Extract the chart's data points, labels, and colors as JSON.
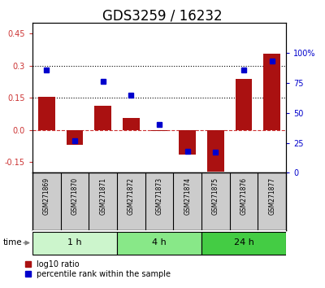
{
  "title": "GDS3259 / 16232",
  "samples": [
    "GSM271869",
    "GSM271870",
    "GSM271871",
    "GSM271872",
    "GSM271873",
    "GSM271874",
    "GSM271875",
    "GSM271876",
    "GSM271877"
  ],
  "log10_ratio": [
    0.155,
    -0.07,
    0.115,
    0.055,
    -0.005,
    -0.115,
    -0.195,
    0.24,
    0.355
  ],
  "percentile_rank": [
    86,
    27,
    76,
    65,
    40,
    18,
    17,
    86,
    93
  ],
  "time_groups": [
    {
      "label": "1 h",
      "samples": [
        0,
        1,
        2
      ],
      "color": "#ccf5cc"
    },
    {
      "label": "4 h",
      "samples": [
        3,
        4,
        5
      ],
      "color": "#88e888"
    },
    {
      "label": "24 h",
      "samples": [
        6,
        7,
        8
      ],
      "color": "#44cc44"
    }
  ],
  "bar_color": "#aa1111",
  "dot_color": "#0000cc",
  "ylim_left": [
    -0.2,
    0.5
  ],
  "ylim_right": [
    0,
    125
  ],
  "yticks_left": [
    -0.15,
    0.0,
    0.15,
    0.3,
    0.45
  ],
  "yticks_right": [
    0,
    25,
    50,
    75,
    100
  ],
  "hlines": [
    0.15,
    0.3
  ],
  "sample_bg": "#cccccc",
  "title_fontsize": 12
}
